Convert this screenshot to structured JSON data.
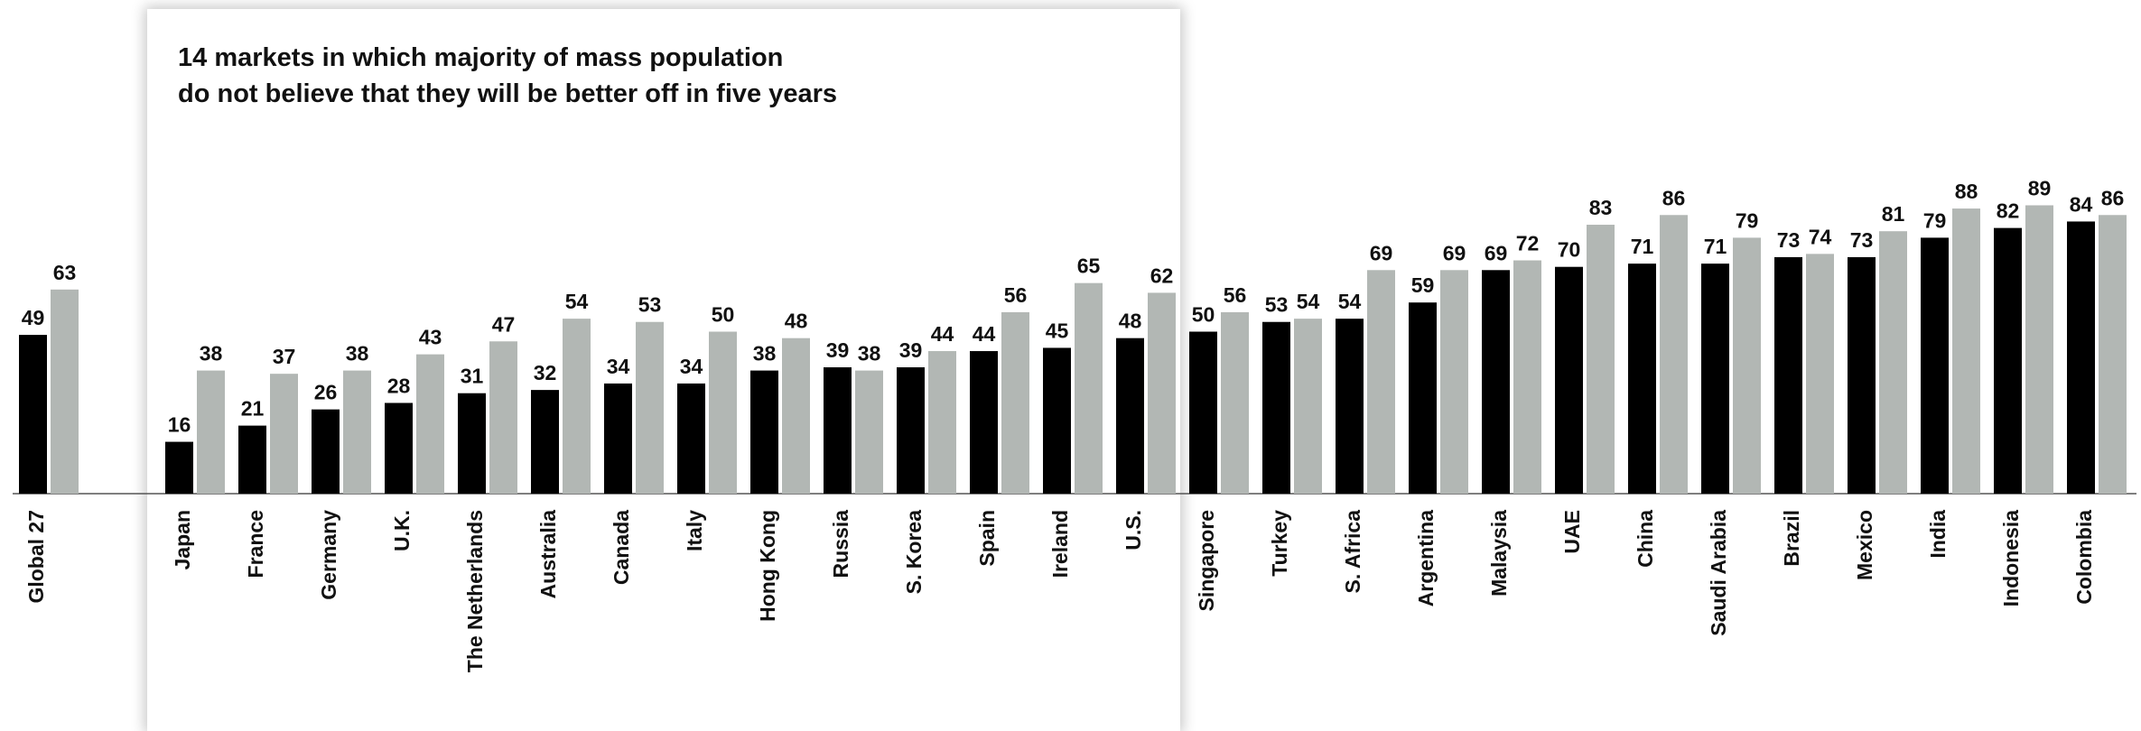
{
  "chart_data": {
    "type": "bar",
    "title": "",
    "xlabel": "",
    "ylabel": "",
    "ylim": [
      0,
      100
    ],
    "grid": false,
    "legend": "none",
    "annotation": {
      "lines": [
        "14 markets in which majority of mass population",
        "do not believe that they will be better off in five years"
      ]
    },
    "categories": [
      "Global 27",
      "Japan",
      "France",
      "Germany",
      "U.K.",
      "The Netherlands",
      "Australia",
      "Canada",
      "Italy",
      "Hong Kong",
      "Russia",
      "S. Korea",
      "Spain",
      "Ireland",
      "U.S.",
      "Singapore",
      "Turkey",
      "S. Africa",
      "Argentina",
      "Malaysia",
      "UAE",
      "China",
      "Saudi Arabia",
      "Brazil",
      "Mexico",
      "India",
      "Indonesia",
      "Colombia"
    ],
    "series": [
      {
        "values": [
          49,
          16,
          21,
          26,
          28,
          31,
          32,
          34,
          34,
          38,
          39,
          39,
          44,
          45,
          48,
          50,
          53,
          54,
          59,
          69,
          70,
          71,
          71,
          73,
          73,
          79,
          82,
          84
        ],
        "color": "#000000"
      },
      {
        "values": [
          63,
          38,
          37,
          38,
          43,
          47,
          54,
          53,
          50,
          48,
          38,
          44,
          56,
          65,
          62,
          56,
          54,
          69,
          69,
          72,
          83,
          86,
          79,
          74,
          81,
          88,
          89,
          86
        ],
        "color": "#b2b7b4"
      }
    ]
  }
}
